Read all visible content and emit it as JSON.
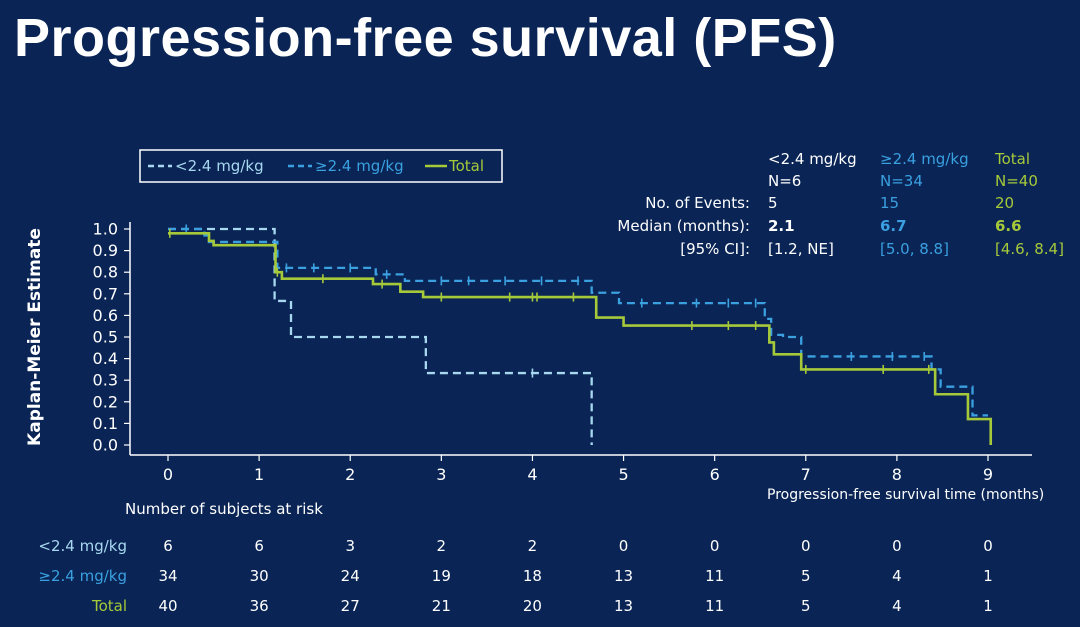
{
  "page": {
    "title": "Progression-free survival (PFS)"
  },
  "colors": {
    "background": "#0a2555",
    "low_dose": "#a8d8f0",
    "high_dose": "#3aa0e0",
    "total": "#a6c93a",
    "text": "#ffffff"
  },
  "chart_data": {
    "type": "line",
    "subtype": "kaplan-meier",
    "ylabel": "Kaplan-Meier Estimate",
    "xlabel": "Progression-free survival time (months)",
    "xlim": [
      0,
      9
    ],
    "ylim": [
      0,
      1
    ],
    "x_ticks": [
      "0",
      "1",
      "2",
      "3",
      "4",
      "5",
      "6",
      "7",
      "8",
      "9"
    ],
    "y_ticks": [
      "0.0",
      "0.1",
      "0.2",
      "0.3",
      "0.4",
      "0.5",
      "0.6",
      "0.7",
      "0.8",
      "0.9",
      "1.0"
    ],
    "legend": {
      "placement": "top-left",
      "entries": [
        "<2.4 mg/kg",
        "≥2.4 mg/kg",
        "Total"
      ]
    },
    "series": [
      {
        "name": "<2.4 mg/kg",
        "style": "dashed",
        "steps": [
          [
            0,
            1.0
          ],
          [
            1.17,
            0.667
          ],
          [
            1.35,
            0.5
          ],
          [
            2.83,
            0.333
          ],
          [
            4.65,
            0.0
          ]
        ],
        "end": 4.65,
        "censors": [
          [
            4.0,
            0.333
          ]
        ]
      },
      {
        "name": "≥2.4 mg/kg",
        "style": "dashed",
        "steps": [
          [
            0,
            1.0
          ],
          [
            0.4,
            0.97
          ],
          [
            0.45,
            0.94
          ],
          [
            1.2,
            0.82
          ],
          [
            2.28,
            0.79
          ],
          [
            2.6,
            0.76
          ],
          [
            4.65,
            0.705
          ],
          [
            4.95,
            0.657
          ],
          [
            6.55,
            0.584
          ],
          [
            6.62,
            0.51
          ],
          [
            6.75,
            0.5
          ],
          [
            6.95,
            0.41
          ],
          [
            8.38,
            0.35
          ],
          [
            8.48,
            0.27
          ],
          [
            8.83,
            0.137
          ]
        ],
        "end": 9.0,
        "censors": [
          [
            0.2,
            1.0
          ],
          [
            1.3,
            0.82
          ],
          [
            1.6,
            0.82
          ],
          [
            2.0,
            0.82
          ],
          [
            2.4,
            0.79
          ],
          [
            3.0,
            0.76
          ],
          [
            3.3,
            0.76
          ],
          [
            3.7,
            0.76
          ],
          [
            4.1,
            0.76
          ],
          [
            4.5,
            0.76
          ],
          [
            5.2,
            0.657
          ],
          [
            5.8,
            0.657
          ],
          [
            6.15,
            0.657
          ],
          [
            6.45,
            0.657
          ],
          [
            7.5,
            0.41
          ],
          [
            7.95,
            0.41
          ],
          [
            8.3,
            0.41
          ]
        ]
      },
      {
        "name": "Total",
        "style": "solid",
        "steps": [
          [
            0,
            0.98
          ],
          [
            0.45,
            0.945
          ],
          [
            0.5,
            0.925
          ],
          [
            1.18,
            0.8
          ],
          [
            1.25,
            0.77
          ],
          [
            2.25,
            0.745
          ],
          [
            2.55,
            0.71
          ],
          [
            2.8,
            0.685
          ],
          [
            4.7,
            0.59
          ],
          [
            5.0,
            0.553
          ],
          [
            6.6,
            0.475
          ],
          [
            6.65,
            0.42
          ],
          [
            6.95,
            0.35
          ],
          [
            8.42,
            0.235
          ],
          [
            8.78,
            0.12
          ]
        ],
        "end": 9.03,
        "end_value": 0.0,
        "censors": [
          [
            0.02,
            0.98
          ],
          [
            1.2,
            0.8
          ],
          [
            1.7,
            0.77
          ],
          [
            2.35,
            0.745
          ],
          [
            3.0,
            0.685
          ],
          [
            3.75,
            0.685
          ],
          [
            4.0,
            0.685
          ],
          [
            4.05,
            0.685
          ],
          [
            4.45,
            0.685
          ],
          [
            5.75,
            0.553
          ],
          [
            6.15,
            0.553
          ],
          [
            6.45,
            0.553
          ],
          [
            7.0,
            0.35
          ],
          [
            7.85,
            0.35
          ],
          [
            8.35,
            0.35
          ]
        ]
      }
    ],
    "stats_table": {
      "columns": [
        {
          "name": "<2.4 mg/kg",
          "n": "N=6",
          "events": "5",
          "median": "2.1",
          "ci": "[1.2, NE]"
        },
        {
          "name": "≥2.4 mg/kg",
          "n": "N=34",
          "events": "15",
          "median": "6.7",
          "ci": "[5.0, 8.8]"
        },
        {
          "name": "Total",
          "n": "N=40",
          "events": "20",
          "median": "6.6",
          "ci": "[4.6, 8.4]"
        }
      ],
      "row_labels": [
        "No. of Events:",
        "Median (months):",
        "[95% CI]:"
      ]
    },
    "risk_table": {
      "title": "Number of subjects at risk",
      "rows": [
        {
          "label": "<2.4 mg/kg",
          "values": [
            "6",
            "6",
            "3",
            "2",
            "2",
            "0",
            "0",
            "0",
            "0",
            "0"
          ]
        },
        {
          "label": "≥2.4 mg/kg",
          "values": [
            "34",
            "30",
            "24",
            "19",
            "18",
            "13",
            "11",
            "5",
            "4",
            "1"
          ]
        },
        {
          "label": "Total",
          "values": [
            "40",
            "36",
            "27",
            "21",
            "20",
            "13",
            "11",
            "5",
            "4",
            "1"
          ]
        }
      ]
    }
  }
}
